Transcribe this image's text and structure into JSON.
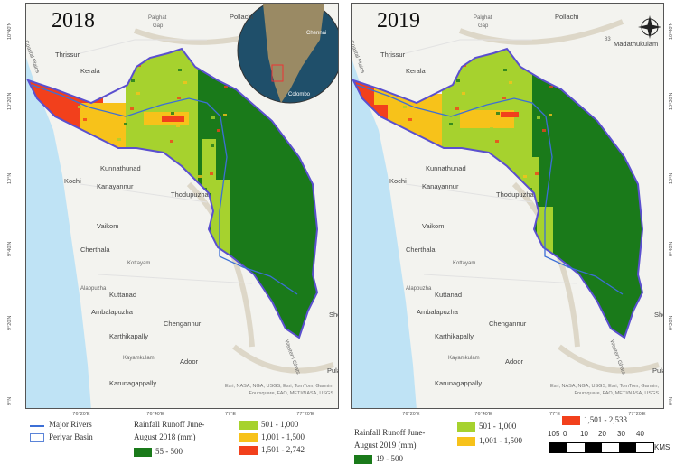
{
  "maps": [
    {
      "year": "2018",
      "places": [
        "Palghat",
        "Gap",
        "Pollachi",
        "Thrissur",
        "Kerala",
        "Coastal Plains",
        "Kunnathunad",
        "Kochi",
        "Kanayannur",
        "Thodupuzha",
        "Vaikom",
        "Cherthala",
        "Kottayam",
        "Alappuzha",
        "Kuttanad",
        "Ambalapuzha",
        "Chengannur",
        "Karthikapally",
        "Kayamkulam",
        "Adoor",
        "Karunagappally",
        "Western Ghats",
        "Shencottai",
        "Pulan"
      ],
      "inset": {
        "labels": [
          "Chennai",
          "Colombo"
        ]
      },
      "attribution": "Esri, NASA, NGA, USGS, Esri, TomTom, Garmin, Foursquare, FAO, METI/NASA, USGS"
    },
    {
      "year": "2019",
      "places": [
        "Palghat",
        "Gap",
        "Pollachi",
        "Thrissur",
        "Kerala",
        "Coastal Plains",
        "Kunnathunad",
        "Kochi",
        "Kanayannur",
        "Thodupuzha",
        "Vaikom",
        "Cherthala",
        "Kottayam",
        "Alappuzha",
        "Kuttanad",
        "Ambalapuzha",
        "Chengannur",
        "Karthikapally",
        "Kayamkulam",
        "Adoor",
        "Karunagappally",
        "Western Ghats",
        "Shencottai",
        "Pulan",
        "Madathukulam",
        "83"
      ],
      "attribution": "Esri, NASA, NGA, USGS, Esri, TomTom, Garmin, Foursquare, FAO, METI/NASA, USGS"
    }
  ],
  "lat_labels": [
    "10°40'N",
    "10°20'N",
    "10°N",
    "9°40'N",
    "9°20'N",
    "9°N"
  ],
  "lon_labels": [
    "76°20'E",
    "76°40'E",
    "77°E",
    "77°20'E"
  ],
  "legend_2018": {
    "rivers": "Major Rivers",
    "basin": "Periyar Basin",
    "title_line1": "Rainfall Runoff June-",
    "title_line2": "August 2018 (mm)",
    "classes": [
      {
        "label": "55 - 500",
        "color": "#1a7a1a"
      },
      {
        "label": "501 - 1,000",
        "color": "#a6d22e"
      },
      {
        "label": "1,001 - 1,500",
        "color": "#f7c21a"
      },
      {
        "label": "1,501 - 2,742",
        "color": "#f2401c"
      }
    ]
  },
  "legend_2019": {
    "title_line1": "Rainfall Runoff June-",
    "title_line2": "August 2019 (mm)",
    "classes": [
      {
        "label": "19 - 500",
        "color": "#1a7a1a"
      },
      {
        "label": "501 - 1,000",
        "color": "#a6d22e"
      },
      {
        "label": "1,001 - 1,500",
        "color": "#f7c21a"
      },
      {
        "label": "1,501 - 2,533",
        "color": "#f2401c"
      }
    ]
  },
  "scale_bar": {
    "ticks": [
      "10",
      "5",
      "0",
      "10",
      "20",
      "30",
      "40"
    ],
    "unit": "KMS"
  },
  "colors": {
    "river": "#3c6fd6",
    "basin_outline": "#5a4fcf",
    "sea": "#bfe3f5",
    "land": "#f3f3ef"
  }
}
